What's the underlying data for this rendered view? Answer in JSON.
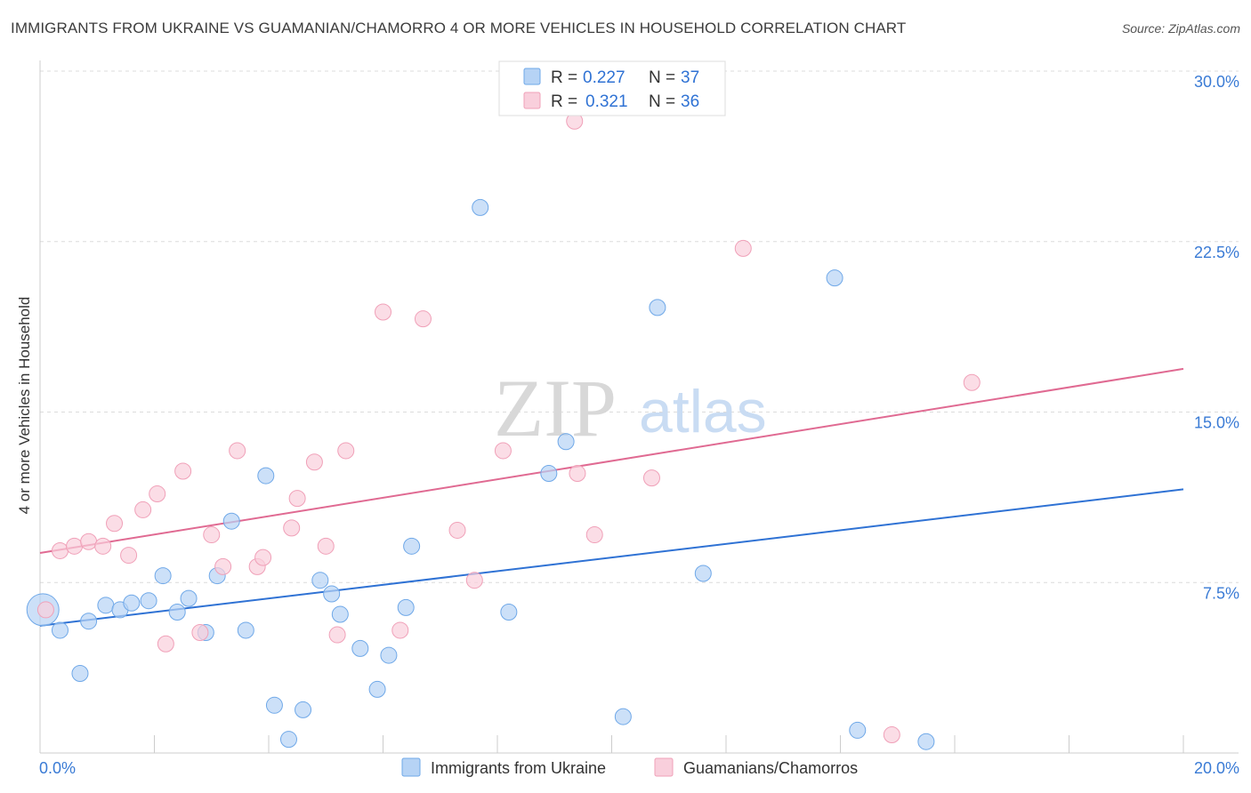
{
  "chart_data": {
    "type": "scatter",
    "title": "IMMIGRANTS FROM UKRAINE VS GUAMANIAN/CHAMORRO 4 OR MORE VEHICLES IN HOUSEHOLD CORRELATION CHART",
    "source": "Source: ZipAtlas.com",
    "ylabel": "4 or more Vehicles in Household",
    "xlim": [
      0,
      20
    ],
    "ylim": [
      0,
      30
    ],
    "x_tick_labels": [
      "0.0%",
      "20.0%"
    ],
    "y_ticks": [
      7.5,
      15.0,
      22.5,
      30.0
    ],
    "y_tick_labels": [
      "7.5%",
      "15.0%",
      "22.5%",
      "30.0%"
    ],
    "watermark": {
      "zip": "ZIP",
      "atlas": "atlas"
    },
    "series": [
      {
        "name": "Immigrants from Ukraine",
        "color": "#6fa8e8",
        "fill": "#b6d3f5",
        "line_color": "#2f72d4",
        "R": "0.227",
        "N": "37",
        "trend": [
          [
            0,
            5.6
          ],
          [
            20,
            11.6
          ]
        ],
        "points": [
          [
            0.05,
            6.3,
            18
          ],
          [
            0.35,
            5.4,
            9
          ],
          [
            0.7,
            3.5,
            9
          ],
          [
            0.85,
            5.8,
            9
          ],
          [
            1.15,
            6.5,
            9
          ],
          [
            1.4,
            6.3,
            9
          ],
          [
            1.6,
            6.6,
            9
          ],
          [
            1.9,
            6.7,
            9
          ],
          [
            2.15,
            7.8,
            9
          ],
          [
            2.4,
            6.2,
            9
          ],
          [
            2.6,
            6.8,
            9
          ],
          [
            2.9,
            5.3,
            9
          ],
          [
            3.1,
            7.8,
            9
          ],
          [
            3.35,
            10.2,
            9
          ],
          [
            3.6,
            5.4,
            9
          ],
          [
            3.95,
            12.2,
            9
          ],
          [
            4.1,
            2.1,
            9
          ],
          [
            4.35,
            0.6,
            9
          ],
          [
            4.6,
            1.9,
            9
          ],
          [
            4.9,
            7.6,
            9
          ],
          [
            5.1,
            7.0,
            9
          ],
          [
            5.25,
            6.1,
            9
          ],
          [
            5.6,
            4.6,
            9
          ],
          [
            5.9,
            2.8,
            9
          ],
          [
            6.1,
            4.3,
            9
          ],
          [
            6.4,
            6.4,
            9
          ],
          [
            6.5,
            9.1,
            9
          ],
          [
            7.7,
            24.0,
            9
          ],
          [
            8.2,
            6.2,
            9
          ],
          [
            8.9,
            12.3,
            9
          ],
          [
            9.2,
            13.7,
            9
          ],
          [
            10.2,
            1.6,
            9
          ],
          [
            10.8,
            19.6,
            9
          ],
          [
            11.6,
            7.9,
            9
          ],
          [
            13.9,
            20.9,
            9
          ],
          [
            14.3,
            1.0,
            9
          ],
          [
            15.5,
            0.5,
            9
          ]
        ]
      },
      {
        "name": "Guamanians/Chamorros",
        "color": "#f0a0b8",
        "fill": "#f9cfdc",
        "line_color": "#e06a92",
        "R": "0.321",
        "N": "36",
        "trend": [
          [
            0,
            8.8
          ],
          [
            20,
            16.9
          ]
        ],
        "points": [
          [
            0.1,
            6.3,
            9
          ],
          [
            0.35,
            8.9,
            9
          ],
          [
            0.6,
            9.1,
            9
          ],
          [
            0.85,
            9.3,
            9
          ],
          [
            1.1,
            9.1,
            9
          ],
          [
            1.3,
            10.1,
            9
          ],
          [
            1.55,
            8.7,
            9
          ],
          [
            1.8,
            10.7,
            9
          ],
          [
            2.05,
            11.4,
            9
          ],
          [
            2.2,
            4.8,
            9
          ],
          [
            2.5,
            12.4,
            9
          ],
          [
            2.8,
            5.3,
            9
          ],
          [
            3.0,
            9.6,
            9
          ],
          [
            3.2,
            8.2,
            9
          ],
          [
            3.45,
            13.3,
            9
          ],
          [
            3.8,
            8.2,
            9
          ],
          [
            3.9,
            8.6,
            9
          ],
          [
            4.4,
            9.9,
            9
          ],
          [
            4.5,
            11.2,
            9
          ],
          [
            4.8,
            12.8,
            9
          ],
          [
            5.0,
            9.1,
            9
          ],
          [
            5.2,
            5.2,
            9
          ],
          [
            5.35,
            13.3,
            9
          ],
          [
            6.0,
            19.4,
            9
          ],
          [
            6.3,
            5.4,
            9
          ],
          [
            6.7,
            19.1,
            9
          ],
          [
            7.3,
            9.8,
            9
          ],
          [
            7.6,
            7.6,
            9
          ],
          [
            8.1,
            13.3,
            9
          ],
          [
            9.35,
            27.8,
            9
          ],
          [
            9.4,
            12.3,
            9
          ],
          [
            9.7,
            9.6,
            9
          ],
          [
            10.7,
            12.1,
            9
          ],
          [
            12.3,
            22.2,
            9
          ],
          [
            14.9,
            0.8,
            9
          ],
          [
            16.3,
            16.3,
            9
          ]
        ]
      }
    ],
    "legend_labels": {
      "r": "R =",
      "n": "N ="
    }
  }
}
